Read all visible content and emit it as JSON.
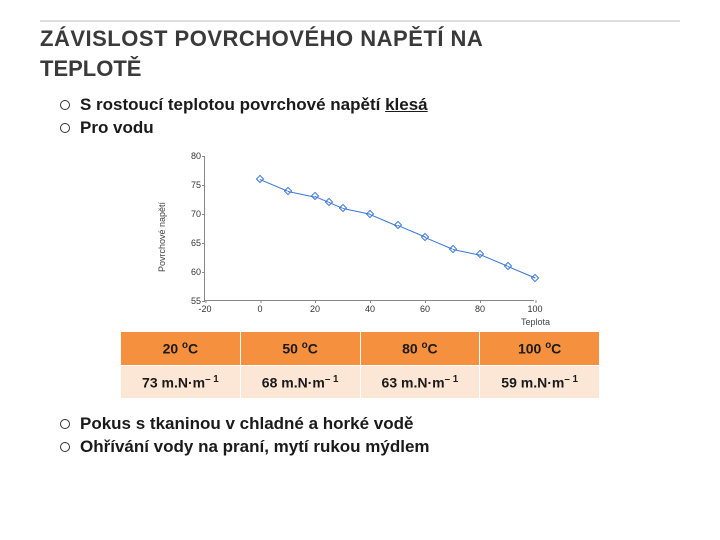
{
  "title_line1": "ZÁVISLOST POVRCHOVÉHO NAPĚTÍ NA",
  "title_line2": "TEPLOTĚ",
  "bullets_top": [
    {
      "pre": "S rostoucí teplotou povrchové napětí ",
      "under": "klesá"
    },
    {
      "pre": "Pro vodu",
      "under": ""
    }
  ],
  "bullets_bottom": [
    "Pokus s tkaninou v chladné a horké vodě",
    "Ohřívání vody na praní, mytí rukou mýdlem"
  ],
  "chart": {
    "type": "line",
    "ylabel": "Povrchové napětí",
    "xlabel": "Teplota",
    "xlim": [
      -20,
      100
    ],
    "ylim": [
      55,
      80
    ],
    "yticks": [
      55,
      60,
      65,
      70,
      75,
      80
    ],
    "xticks": [
      -20,
      0,
      20,
      40,
      60,
      80,
      100
    ],
    "series_color": "#3a76d8",
    "marker_color": "#3a76d8",
    "marker_style": "diamond",
    "line_width": 1.5,
    "background_color": "#ffffff",
    "axis_color": "#888888",
    "tick_fontsize": 9,
    "label_fontsize": 9,
    "points": [
      {
        "x": 0,
        "y": 76
      },
      {
        "x": 10,
        "y": 74
      },
      {
        "x": 20,
        "y": 73
      },
      {
        "x": 25,
        "y": 72
      },
      {
        "x": 30,
        "y": 71
      },
      {
        "x": 40,
        "y": 70
      },
      {
        "x": 50,
        "y": 68
      },
      {
        "x": 60,
        "y": 66
      },
      {
        "x": 70,
        "y": 64
      },
      {
        "x": 80,
        "y": 63
      },
      {
        "x": 90,
        "y": 61
      },
      {
        "x": 100,
        "y": 59
      }
    ]
  },
  "table": {
    "header_bg": "#f5903e",
    "value_bg": "#fce7d6",
    "deg_unit": "oC",
    "val_unit": "m.N·m",
    "val_exp": "– 1",
    "columns": [
      "20",
      "50",
      "80",
      "100"
    ],
    "rows": [
      [
        "73",
        "68",
        "63",
        "59"
      ]
    ]
  }
}
